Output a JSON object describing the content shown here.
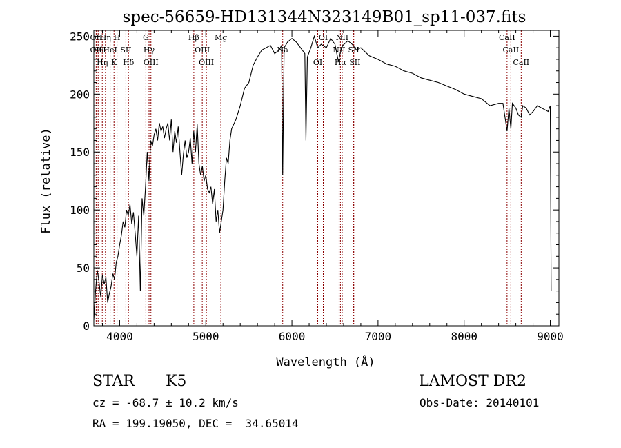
{
  "chart_data": {
    "type": "line",
    "title": "spec-56659-HD131344N323149B01_sp11-037.fits",
    "xlabel": "Wavelength (Å)",
    "ylabel": "Flux (relative)",
    "xlim": [
      3700,
      9100
    ],
    "ylim": [
      0,
      255
    ],
    "xticks": [
      4000,
      5000,
      6000,
      7000,
      8000,
      9000
    ],
    "yticks": [
      0,
      50,
      100,
      150,
      200,
      250
    ],
    "grid": false,
    "line_color": "#000000",
    "marker_color": "#8b0000",
    "series": [
      {
        "x": [
          3700,
          3720,
          3740,
          3760,
          3780,
          3800,
          3820,
          3840,
          3860,
          3880,
          3900,
          3920,
          3940,
          3960,
          3980,
          4000,
          4020,
          4040,
          4060,
          4080,
          4100,
          4120,
          4140,
          4160,
          4180,
          4200,
          4220,
          4240,
          4260,
          4280,
          4300,
          4320,
          4340,
          4360,
          4380,
          4400,
          4420,
          4440,
          4460,
          4480,
          4500,
          4520,
          4540,
          4560,
          4580,
          4600,
          4620,
          4640,
          4660,
          4680,
          4700,
          4720,
          4740,
          4760,
          4780,
          4800,
          4820,
          4840,
          4860,
          4880,
          4900,
          4920,
          4940,
          4960,
          4980,
          5000,
          5020,
          5040,
          5060,
          5080,
          5100,
          5120,
          5140,
          5160,
          5180,
          5200,
          5220,
          5240,
          5260,
          5280,
          5300,
          5350,
          5400,
          5450,
          5500,
          5550,
          5600,
          5650,
          5700,
          5750,
          5800,
          5850,
          5880,
          5893,
          5910,
          5950,
          6000,
          6050,
          6100,
          6150,
          6163,
          6180,
          6220,
          6260,
          6300,
          6340,
          6400,
          6450,
          6500,
          6540,
          6563,
          6590,
          6650,
          6700,
          6750,
          6800,
          6900,
          7000,
          7100,
          7200,
          7300,
          7400,
          7500,
          7600,
          7700,
          7800,
          7900,
          8000,
          8100,
          8200,
          8300,
          8400,
          8450,
          8498,
          8520,
          8542,
          8560,
          8600,
          8630,
          8662,
          8680,
          8720,
          8760,
          8800,
          8850,
          8900,
          8950,
          8975,
          9000,
          9010
        ],
        "y": [
          5,
          30,
          48,
          38,
          25,
          44,
          36,
          42,
          20,
          28,
          34,
          45,
          40,
          55,
          60,
          70,
          78,
          90,
          85,
          100,
          95,
          105,
          88,
          98,
          80,
          60,
          95,
          30,
          110,
          95,
          120,
          150,
          125,
          160,
          155,
          165,
          170,
          160,
          175,
          168,
          172,
          162,
          170,
          175,
          160,
          178,
          150,
          168,
          158,
          172,
          150,
          130,
          148,
          160,
          145,
          150,
          162,
          140,
          168,
          150,
          174,
          140,
          130,
          138,
          125,
          130,
          118,
          115,
          120,
          105,
          118,
          90,
          100,
          80,
          90,
          100,
          125,
          145,
          140,
          160,
          170,
          178,
          190,
          205,
          210,
          225,
          232,
          238,
          240,
          242,
          235,
          238,
          242,
          130,
          240,
          245,
          248,
          245,
          240,
          235,
          160,
          232,
          240,
          250,
          240,
          243,
          240,
          248,
          243,
          228,
          236,
          242,
          246,
          243,
          238,
          240,
          233,
          230,
          226,
          224,
          220,
          218,
          214,
          212,
          210,
          207,
          204,
          200,
          198,
          196,
          190,
          192,
          192,
          168,
          188,
          170,
          192,
          188,
          182,
          180,
          190,
          188,
          182,
          185,
          190,
          188,
          186,
          185,
          190,
          30
        ]
      }
    ],
    "line_markers": [
      {
        "wl": 3727,
        "labels": [
          "OII",
          "OII"
        ]
      },
      {
        "wl": 3750,
        "labels": [
          "Hθ"
        ]
      },
      {
        "wl": 3798,
        "labels": [
          "Hη"
        ]
      },
      {
        "wl": 3835,
        "labels": [
          "Hη"
        ]
      },
      {
        "wl": 3889,
        "labels": [
          "HeI"
        ]
      },
      {
        "wl": 3934,
        "labels": [
          "K"
        ]
      },
      {
        "wl": 3969,
        "labels": [
          "H"
        ]
      },
      {
        "wl": 4072,
        "labels": [
          "SII"
        ]
      },
      {
        "wl": 4102,
        "labels": [
          "Hδ"
        ]
      },
      {
        "wl": 4304,
        "labels": [
          "G"
        ]
      },
      {
        "wl": 4341,
        "labels": [
          "Hγ"
        ]
      },
      {
        "wl": 4363,
        "labels": [
          "OIII"
        ]
      },
      {
        "wl": 4861,
        "labels": [
          "Hβ"
        ]
      },
      {
        "wl": 4959,
        "labels": [
          "OIII"
        ]
      },
      {
        "wl": 5007,
        "labels": [
          "OIII"
        ]
      },
      {
        "wl": 5175,
        "labels": [
          "Mg"
        ]
      },
      {
        "wl": 5893,
        "labels": [
          "Na"
        ]
      },
      {
        "wl": 6300,
        "labels": [
          "OI"
        ]
      },
      {
        "wl": 6364,
        "labels": [
          "OI"
        ]
      },
      {
        "wl": 6548,
        "labels": [
          "NII"
        ]
      },
      {
        "wl": 6563,
        "labels": [
          "Hα"
        ]
      },
      {
        "wl": 6584,
        "labels": [
          "NII"
        ]
      },
      {
        "wl": 6717,
        "labels": [
          "SII"
        ]
      },
      {
        "wl": 6731,
        "labels": [
          "SII"
        ]
      },
      {
        "wl": 8498,
        "labels": [
          "CaII"
        ]
      },
      {
        "wl": 8542,
        "labels": [
          "CaII"
        ]
      },
      {
        "wl": 8662,
        "labels": [
          "CaII"
        ]
      }
    ]
  },
  "info": {
    "object_class": "STAR",
    "subclass": "K5",
    "survey": "LAMOST DR2",
    "redshift": "cz = -68.7 ± 10.2 km/s",
    "obs_date": "Obs-Date: 20140101",
    "coords": "RA = 199.19050, DEC =  34.65014"
  }
}
